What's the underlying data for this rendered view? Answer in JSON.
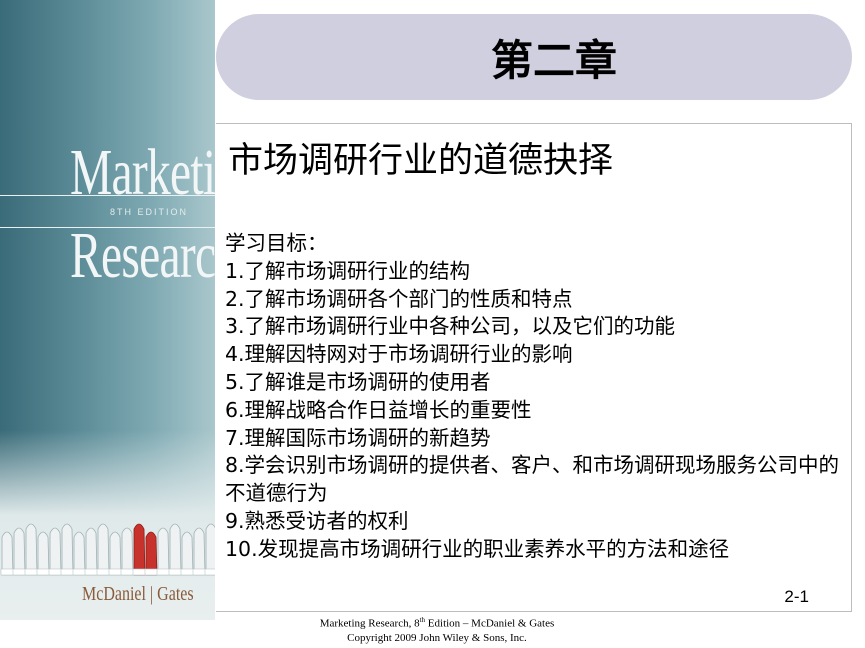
{
  "cover": {
    "title_line1": "Marketing",
    "edition": "8TH EDITION",
    "title_line2": "Research",
    "authors": "McDaniel  |  Gates"
  },
  "header": {
    "chapter": "第二章"
  },
  "content": {
    "title": "市场调研行业的道德抉择",
    "objectives_heading": "学习目标：",
    "objectives": [
      "1.了解市场调研行业的结构",
      "2.了解市场调研各个部门的性质和特点",
      "3.了解市场调研行业中各种公司，以及它们的功能",
      "4.理解因特网对于市场调研行业的影响",
      "5.了解谁是市场调研的使用者",
      "6.理解战略合作日益增长的重要性",
      "7.理解国际市场调研的新趋势",
      "8.学会识别市场调研的提供者、客户、和市场调研现场服务公司中的不道德行为",
      "9.熟悉受访者的权利",
      "10.发现提高市场调研行业的职业素养水平的方法和途径"
    ],
    "page_number": "2-1"
  },
  "footer": {
    "line1_prefix": "Marketing Research, 8",
    "line1_sup": "th",
    "line1_suffix": " Edition – McDaniel & Gates",
    "line2": "Copyright 2009 John Wiley & Sons, Inc."
  }
}
